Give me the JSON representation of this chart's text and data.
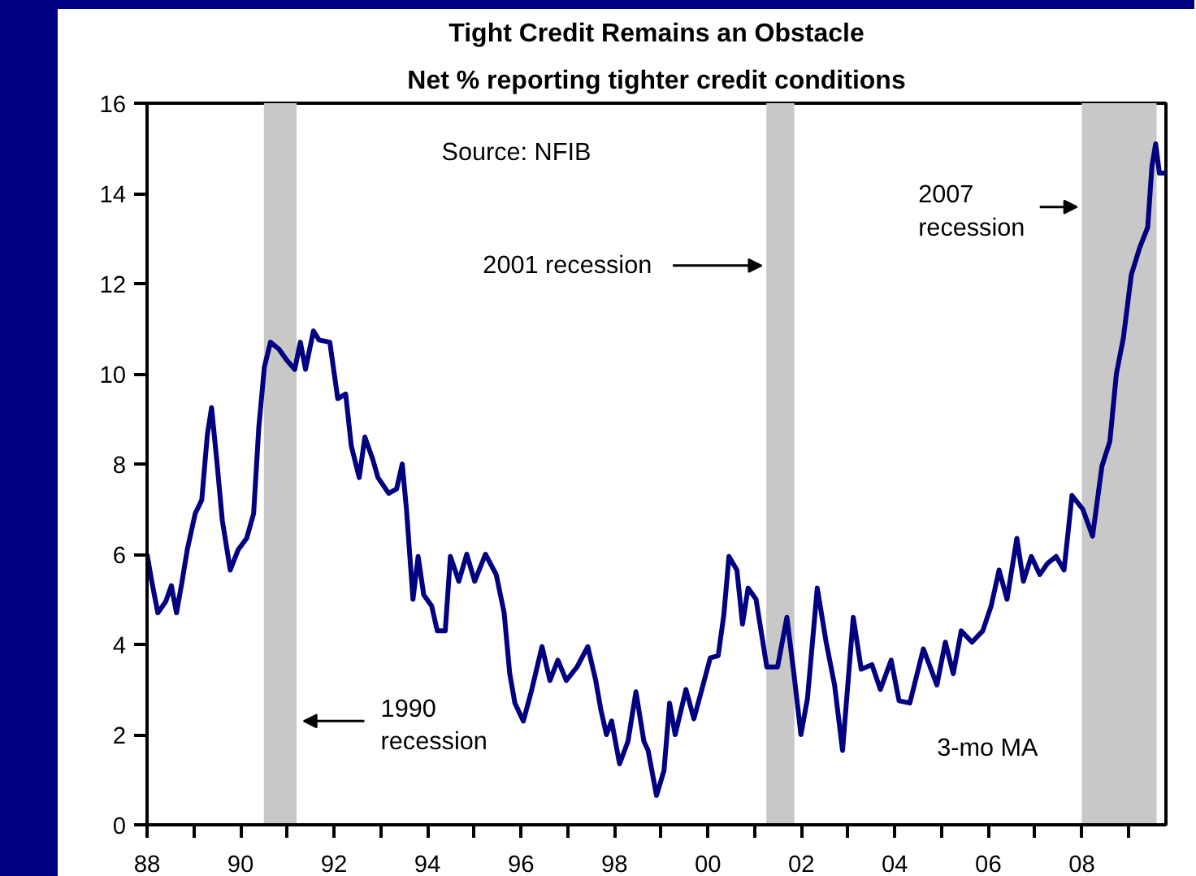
{
  "chart_data": {
    "type": "line",
    "title": "Tight Credit Remains an Obstacle",
    "subtitle": "Net % reporting tighter credit conditions",
    "x": [
      1988.0,
      1988.1,
      1988.23,
      1988.4,
      1988.52,
      1988.63,
      1988.75,
      1988.86,
      1989.03,
      1989.17,
      1989.29,
      1989.38,
      1989.49,
      1989.61,
      1989.78,
      1989.95,
      1990.13,
      1990.28,
      1990.39,
      1990.51,
      1990.64,
      1990.82,
      1990.99,
      1991.16,
      1991.28,
      1991.39,
      1991.56,
      1991.68,
      1991.91,
      1992.08,
      1992.25,
      1992.37,
      1992.54,
      1992.66,
      1992.83,
      1992.94,
      1993.17,
      1993.34,
      1993.46,
      1993.55,
      1993.69,
      1993.8,
      1993.92,
      1994.09,
      1994.21,
      1994.38,
      1994.49,
      1994.67,
      1994.84,
      1995.01,
      1995.24,
      1995.47,
      1995.64,
      1995.76,
      1995.87,
      1996.05,
      1996.22,
      1996.45,
      1996.62,
      1996.79,
      1996.97,
      1997.2,
      1997.43,
      1997.6,
      1997.71,
      1997.83,
      1997.94,
      1998.11,
      1998.29,
      1998.46,
      1998.63,
      1998.72,
      1998.9,
      1999.06,
      1999.18,
      1999.3,
      1999.53,
      1999.7,
      1999.87,
      2000.05,
      2000.22,
      2000.34,
      2000.45,
      2000.62,
      2000.74,
      2000.86,
      2001.03,
      2001.26,
      2001.49,
      2001.69,
      2001.84,
      2001.99,
      2002.13,
      2002.34,
      2002.53,
      2002.71,
      2002.88,
      2003.11,
      2003.28,
      2003.51,
      2003.69,
      2003.92,
      2004.09,
      2004.32,
      2004.61,
      2004.9,
      2005.08,
      2005.25,
      2005.42,
      2005.65,
      2005.88,
      2006.06,
      2006.23,
      2006.4,
      2006.61,
      2006.75,
      2006.92,
      2007.1,
      2007.27,
      2007.45,
      2007.62,
      2007.79,
      2008.02,
      2008.23,
      2008.43,
      2008.6,
      2008.74,
      2008.89,
      2009.06,
      2009.24,
      2009.41,
      2009.5,
      2009.58,
      2009.66,
      2009.78
    ],
    "series": [
      {
        "color": "#000080",
        "values": [
          6.0,
          5.4,
          4.7,
          4.95,
          5.3,
          4.7,
          5.4,
          6.1,
          6.9,
          7.2,
          8.65,
          9.25,
          8.1,
          6.75,
          5.65,
          6.1,
          6.35,
          6.9,
          8.8,
          10.15,
          10.7,
          10.55,
          10.3,
          10.1,
          10.7,
          10.1,
          10.95,
          10.75,
          10.7,
          9.45,
          9.55,
          8.4,
          7.7,
          8.6,
          8.1,
          7.7,
          7.35,
          7.45,
          8.0,
          7.0,
          5.0,
          5.95,
          5.1,
          4.85,
          4.3,
          4.3,
          5.95,
          5.4,
          6.0,
          5.4,
          6.0,
          5.55,
          4.7,
          3.35,
          2.7,
          2.3,
          2.95,
          3.95,
          3.2,
          3.65,
          3.2,
          3.5,
          3.95,
          3.2,
          2.55,
          2.0,
          2.3,
          1.35,
          1.85,
          2.95,
          1.85,
          1.65,
          0.65,
          1.2,
          2.7,
          2.0,
          3.0,
          2.35,
          3.0,
          3.7,
          3.75,
          4.65,
          5.95,
          5.65,
          4.45,
          5.25,
          5.0,
          3.5,
          3.5,
          4.6,
          3.35,
          2.0,
          2.8,
          5.25,
          4.05,
          3.1,
          1.65,
          4.6,
          3.45,
          3.55,
          3.0,
          3.65,
          2.75,
          2.7,
          3.9,
          3.1,
          4.05,
          3.35,
          4.3,
          4.05,
          4.3,
          4.85,
          5.65,
          5.0,
          6.35,
          5.4,
          5.95,
          5.55,
          5.8,
          5.95,
          5.65,
          7.3,
          7.0,
          6.4,
          7.95,
          8.5,
          10.0,
          10.8,
          12.2,
          12.8,
          13.25,
          14.6,
          15.1,
          14.45,
          14.45
        ]
      }
    ],
    "xlim": [
      1988,
      2009.8
    ],
    "ylim": [
      0,
      16
    ],
    "xticks": [
      {
        "value": 1988,
        "label": "88"
      },
      {
        "value": 1989,
        "label": null
      },
      {
        "value": 1990,
        "label": "90"
      },
      {
        "value": 1991,
        "label": null
      },
      {
        "value": 1992,
        "label": "92"
      },
      {
        "value": 1993,
        "label": null
      },
      {
        "value": 1994,
        "label": "94"
      },
      {
        "value": 1995,
        "label": null
      },
      {
        "value": 1996,
        "label": "96"
      },
      {
        "value": 1997,
        "label": null
      },
      {
        "value": 1998,
        "label": "98"
      },
      {
        "value": 1999,
        "label": null
      },
      {
        "value": 2000,
        "label": "00"
      },
      {
        "value": 2001,
        "label": null
      },
      {
        "value": 2002,
        "label": "02"
      },
      {
        "value": 2003,
        "label": null
      },
      {
        "value": 2004,
        "label": "04"
      },
      {
        "value": 2005,
        "label": null
      },
      {
        "value": 2006,
        "label": "06"
      },
      {
        "value": 2007,
        "label": null
      },
      {
        "value": 2008,
        "label": "08"
      },
      {
        "value": 2009,
        "label": null
      }
    ],
    "yticks": [
      0,
      2,
      4,
      6,
      8,
      10,
      12,
      14,
      16
    ],
    "bands": [
      {
        "axis": "x",
        "from": 1990.5,
        "to": 1991.2,
        "color": "#c8c8c8",
        "label": "1990\nrecession"
      },
      {
        "axis": "x",
        "from": 2001.25,
        "to": 2001.85,
        "color": "#c8c8c8",
        "label": "2001 recession"
      },
      {
        "axis": "x",
        "from": 2008.0,
        "to": 2009.6,
        "color": "#c8c8c8",
        "label": "2007\nrecession"
      }
    ],
    "annotations": [
      "Source: NFIB",
      "3-mo MA"
    ],
    "grid": false,
    "line_style": "solid",
    "marker": "none"
  }
}
